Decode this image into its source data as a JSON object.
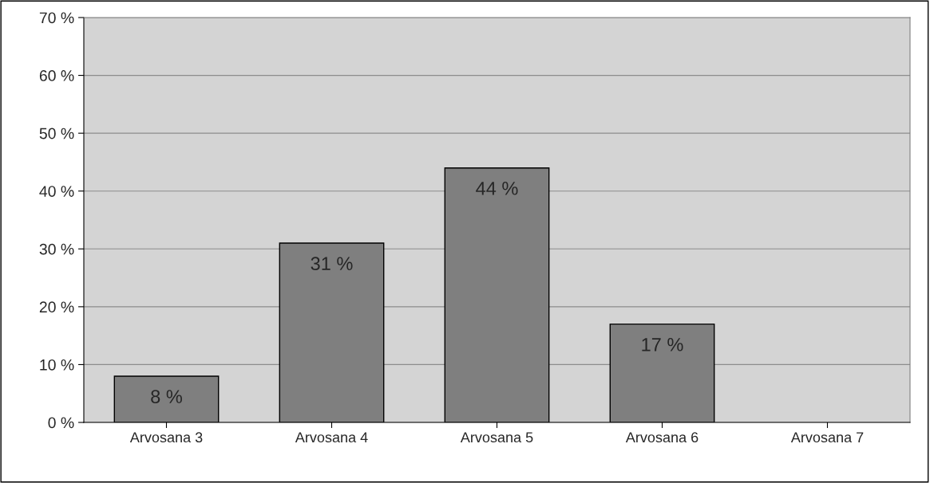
{
  "chart_data": {
    "type": "bar",
    "categories": [
      "Arvosana 3",
      "Arvosana 4",
      "Arvosana 5",
      "Arvosana 6",
      "Arvosana 7"
    ],
    "values": [
      8,
      31,
      44,
      17,
      null
    ],
    "value_labels": [
      "8 %",
      "31 %",
      "44 %",
      "17 %",
      null
    ],
    "color": "#7f7f7f",
    "ylim": [
      0,
      70
    ],
    "yticks": [
      {
        "value": 0,
        "label": "0 %"
      },
      {
        "value": 10,
        "label": "10 %"
      },
      {
        "value": 20,
        "label": "20 %"
      },
      {
        "value": 30,
        "label": "30 %"
      },
      {
        "value": 40,
        "label": "40 %"
      },
      {
        "value": 50,
        "label": "50 %"
      },
      {
        "value": 60,
        "label": "60 %"
      },
      {
        "value": 70,
        "label": "70 %"
      }
    ],
    "grid": "y",
    "legend": false
  }
}
